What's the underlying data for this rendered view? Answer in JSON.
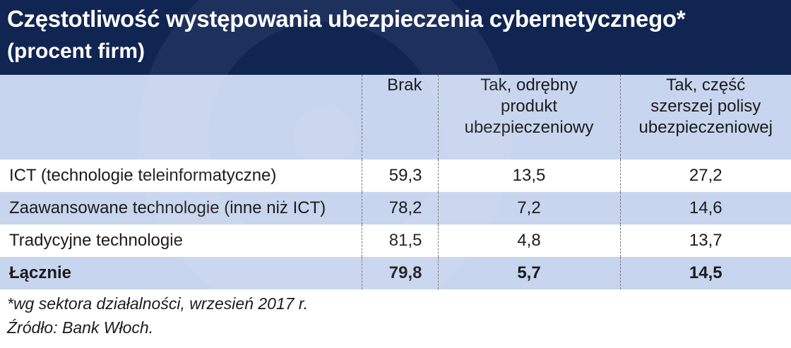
{
  "colors": {
    "header_bg": "#102552",
    "title_text": "#ffffff",
    "band": "#c7d5ef",
    "text": "#1b1b1b",
    "separator": "#777777"
  },
  "header": {
    "title": "Częstotliwość występowania ubezpieczenia cybernetycznego*",
    "subtitle": "(procent firm)"
  },
  "chart_data": {
    "type": "table",
    "title": "Częstotliwość występowania ubezpieczenia cybernetycznego*",
    "subtitle": "(procent firm)",
    "columns": [
      "Brak",
      "Tak, odrębny produkt ubezpieczeniowy",
      "Tak, część szerszej polisy ubezpieczeniowej"
    ],
    "column_lines": [
      [
        "Brak"
      ],
      [
        "Tak, odrębny",
        "produkt",
        "ubezpieczeniowy"
      ],
      [
        "Tak, część",
        "szerszej polisy",
        "ubezpieczeniowej"
      ]
    ],
    "rows": [
      {
        "label": "ICT (technologie teleinformatyczne)",
        "values": [
          "59,3",
          "13,5",
          "27,2"
        ]
      },
      {
        "label": "Zaawansowane technologie (inne niż ICT)",
        "values": [
          "78,2",
          "7,2",
          "14,6"
        ]
      },
      {
        "label": "Tradycyjne technologie",
        "values": [
          "81,5",
          "4,8",
          "13,7"
        ]
      },
      {
        "label": "Łącznie",
        "values": [
          "79,8",
          "5,7",
          "14,5"
        ],
        "bold": true
      }
    ]
  },
  "footer": {
    "footnote": "*wg sektora działalności, wrzesień 2017 r.",
    "source": "Źródło: Bank Włoch."
  }
}
